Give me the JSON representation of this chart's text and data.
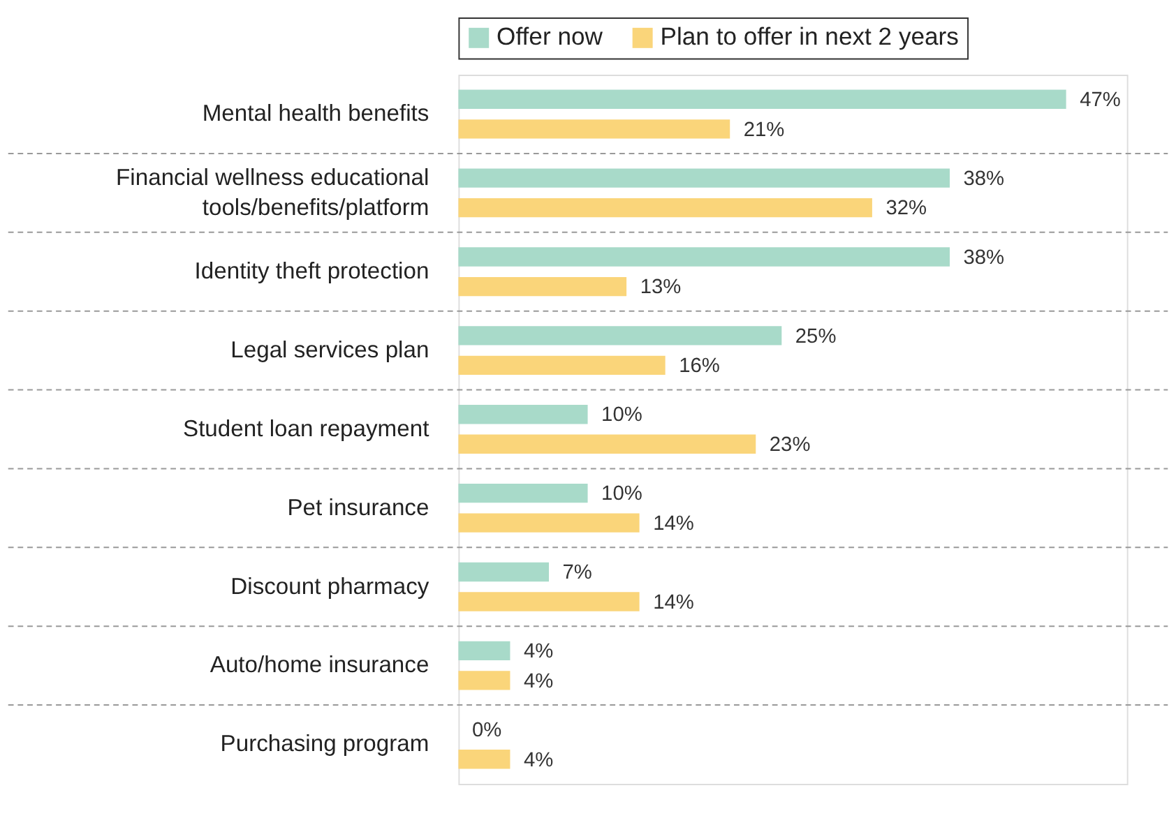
{
  "chart_data": {
    "type": "bar",
    "orientation": "horizontal",
    "categories": [
      "Mental health benefits",
      "Financial wellness educational\ntools/benefits/platform",
      "Identity theft protection",
      "Legal services plan",
      "Student loan repayment",
      "Pet insurance",
      "Discount pharmacy",
      "Auto/home insurance",
      "Purchasing program"
    ],
    "series": [
      {
        "name": "Offer now",
        "color": "#a8dac9",
        "values": [
          47,
          38,
          38,
          25,
          10,
          10,
          7,
          4,
          0
        ],
        "value_labels": [
          "47%",
          "38%",
          "38%",
          "25%",
          "10%",
          "10%",
          "7%",
          "4%",
          "0%"
        ]
      },
      {
        "name": "Plan to offer in next 2 years",
        "color": "#fad57a",
        "values": [
          21,
          32,
          13,
          16,
          23,
          14,
          14,
          4,
          4
        ],
        "value_labels": [
          "21%",
          "32%",
          "13%",
          "16%",
          "23%",
          "14%",
          "14%",
          "4%",
          "4%"
        ]
      }
    ],
    "legend": "top",
    "grid": "y"
  }
}
